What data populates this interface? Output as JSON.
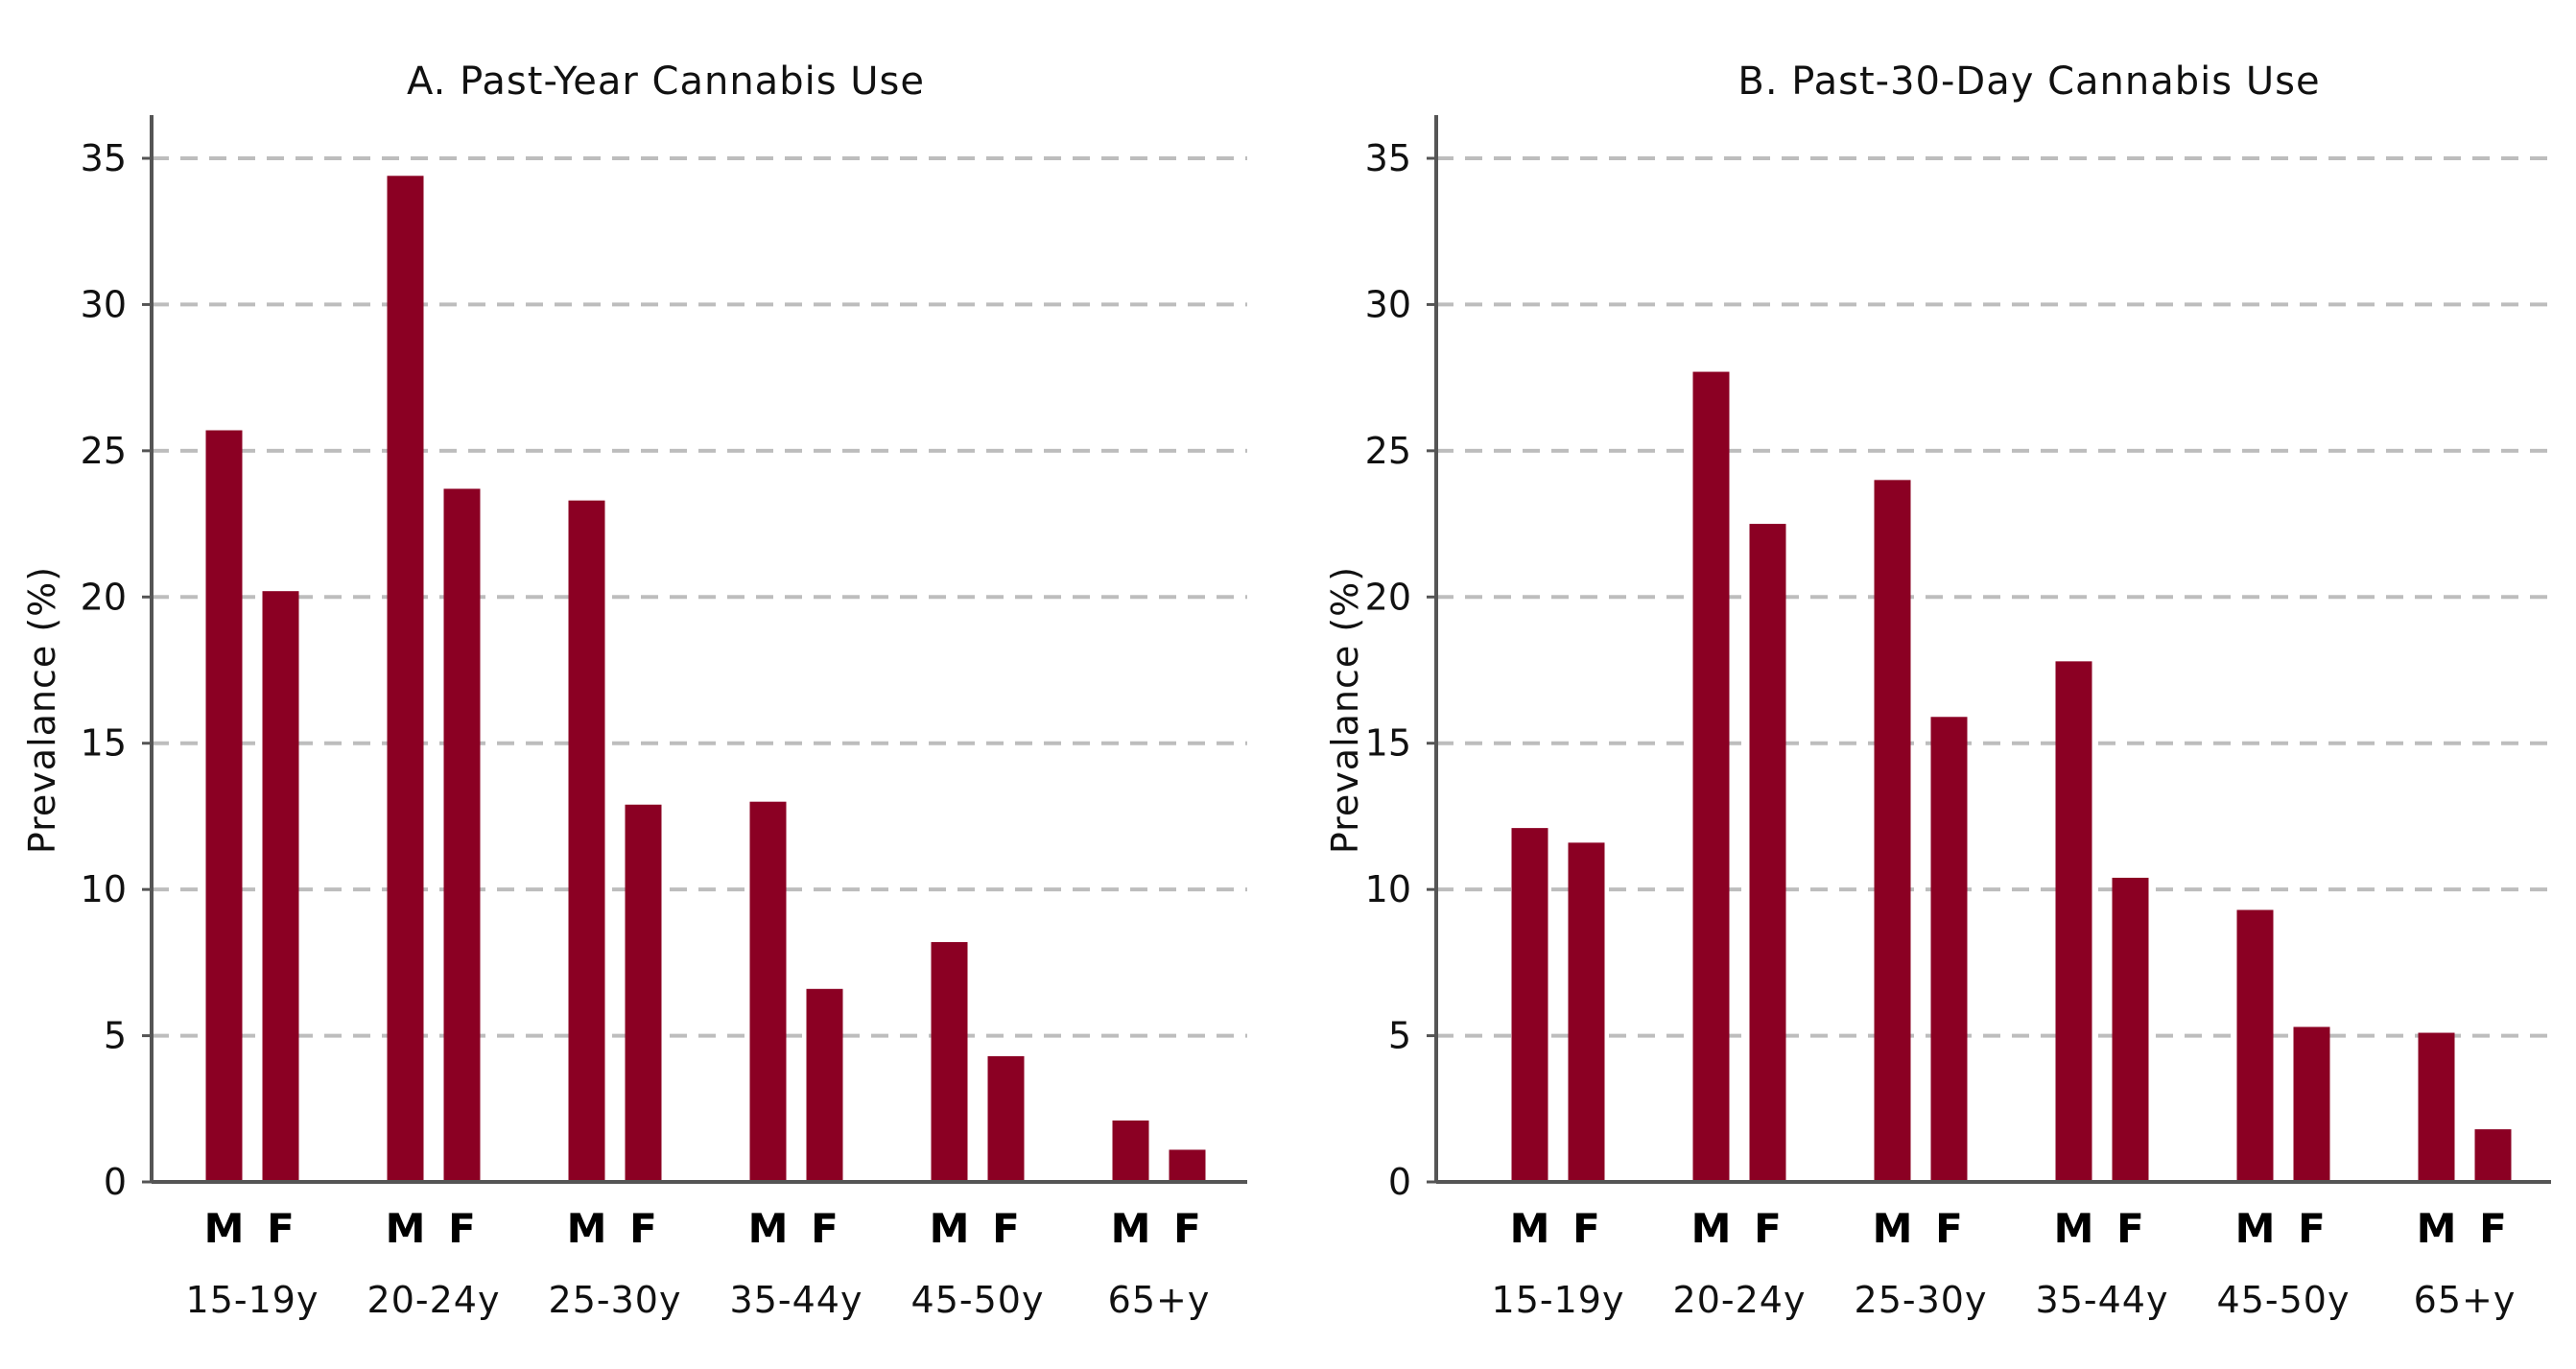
{
  "chart_data": [
    {
      "type": "bar",
      "title": "A. Past-Year Cannabis Use",
      "xlabel": "",
      "ylabel": "Prevalance (%)",
      "ylim": [
        0,
        36
      ],
      "yticks": [
        0,
        5,
        10,
        15,
        20,
        25,
        30,
        35
      ],
      "grid": true,
      "categories": [
        "15-19y",
        "20-24y",
        "25-30y",
        "35-44y",
        "45-50y",
        "65+y"
      ],
      "series": [
        {
          "name": "M",
          "values": [
            25.7,
            34.4,
            23.3,
            13.0,
            8.2,
            2.1
          ]
        },
        {
          "name": "F",
          "values": [
            20.2,
            23.7,
            12.9,
            6.6,
            4.3,
            1.1
          ]
        }
      ],
      "bar_color": "#8B0023"
    },
    {
      "type": "bar",
      "title": "B. Past-30-Day Cannabis Use",
      "xlabel": "",
      "ylabel": "Prevalance (%)",
      "ylim": [
        0,
        36
      ],
      "yticks": [
        0,
        5,
        10,
        15,
        20,
        25,
        30,
        35
      ],
      "grid": true,
      "categories": [
        "15-19y",
        "20-24y",
        "25-30y",
        "35-44y",
        "45-50y",
        "65+y"
      ],
      "series": [
        {
          "name": "M",
          "values": [
            12.1,
            27.7,
            24.0,
            17.8,
            9.3,
            5.1
          ]
        },
        {
          "name": "F",
          "values": [
            11.6,
            22.5,
            15.9,
            10.4,
            5.3,
            1.8
          ]
        }
      ],
      "bar_color": "#8B0023"
    }
  ]
}
